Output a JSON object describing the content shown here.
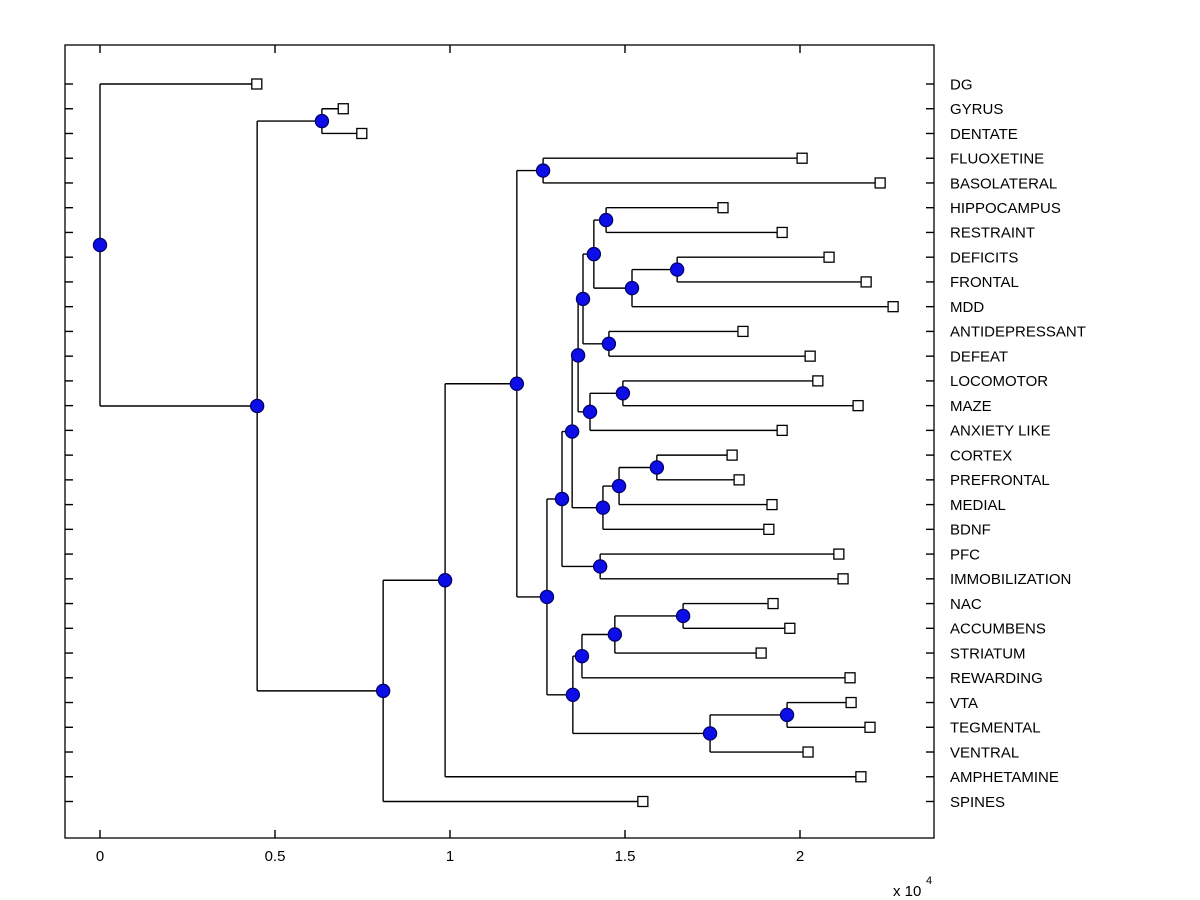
{
  "figure": {
    "background": "#ffffff",
    "frame_color": "#000000",
    "branch_line_color": "#000000",
    "node_marker_fill": "#0d0de8",
    "node_marker_edge": "#000066",
    "leaf_marker_fill": "#ffffff",
    "leaf_marker_edge": "#000000",
    "label_color": "#000000"
  },
  "chart_data": {
    "type": "dendrogram",
    "title": "",
    "xlabel": "",
    "ylabel": "",
    "orientation": "left-to-right",
    "grid": false,
    "legend": null,
    "x_axis": {
      "tick_values": [
        0,
        0.5,
        1,
        1.5,
        2
      ],
      "tick_labels": [
        "0",
        "0.5",
        "1",
        "1.5",
        "2"
      ],
      "multiplier_prefix": "x 10",
      "multiplier_exponent": "4",
      "xlim": [
        -0.1,
        2.383
      ]
    },
    "leaves": [
      {
        "label": "DG",
        "x": 0.448
      },
      {
        "label": "GYRUS",
        "x": 0.695
      },
      {
        "label": "DENTATE",
        "x": 0.748
      },
      {
        "label": "FLUOXETINE",
        "x": 2.006
      },
      {
        "label": "BASOLATERAL",
        "x": 2.229
      },
      {
        "label": "HIPPOCAMPUS",
        "x": 1.78
      },
      {
        "label": "RESTRAINT",
        "x": 1.949
      },
      {
        "label": "DEFICITS",
        "x": 2.083
      },
      {
        "label": "FRONTAL",
        "x": 2.189
      },
      {
        "label": "MDD",
        "x": 2.266
      },
      {
        "label": "ANTIDEPRESSANT",
        "x": 1.837
      },
      {
        "label": "DEFEAT",
        "x": 2.029
      },
      {
        "label": "LOCOMOTOR",
        "x": 2.051
      },
      {
        "label": "MAZE",
        "x": 2.166
      },
      {
        "label": "ANXIETY LIKE",
        "x": 1.949
      },
      {
        "label": "CORTEX",
        "x": 1.806
      },
      {
        "label": "PREFRONTAL",
        "x": 1.826
      },
      {
        "label": "MEDIAL",
        "x": 1.92
      },
      {
        "label": "BDNF",
        "x": 1.911
      },
      {
        "label": "PFC",
        "x": 2.111
      },
      {
        "label": "IMMOBILIZATION",
        "x": 2.123
      },
      {
        "label": "NAC",
        "x": 1.923
      },
      {
        "label": "ACCUMBENS",
        "x": 1.971
      },
      {
        "label": "STRIATUM",
        "x": 1.889
      },
      {
        "label": "REWARDING",
        "x": 2.143
      },
      {
        "label": "VTA",
        "x": 2.146
      },
      {
        "label": "TEGMENTAL",
        "x": 2.2
      },
      {
        "label": "VENTRAL",
        "x": 2.023
      },
      {
        "label": "AMPHETAMINE",
        "x": 2.174
      },
      {
        "label": "SPINES",
        "x": 1.551
      }
    ],
    "nodes": [
      {
        "id": "n-root",
        "x": 0.0,
        "children": [
          "DG",
          "n-2"
        ]
      },
      {
        "id": "n-2",
        "x": 0.449,
        "children": [
          "n-3",
          "n-s"
        ]
      },
      {
        "id": "n-3",
        "x": 0.634,
        "children": [
          "GYRUS",
          "DENTATE"
        ]
      },
      {
        "id": "n-s",
        "x": 0.809,
        "children": [
          "n-q",
          "SPINES"
        ]
      },
      {
        "id": "n-q",
        "x": 0.986,
        "children": [
          "n-p",
          "AMPHETAMINE"
        ]
      },
      {
        "id": "n-p",
        "x": 1.191,
        "children": [
          "n-j",
          "n-t"
        ]
      },
      {
        "id": "n-j",
        "x": 1.266,
        "children": [
          "FLUOXETINE",
          "BASOLATERAL"
        ]
      },
      {
        "id": "n-t",
        "x": 1.277,
        "children": [
          "n-x",
          "n-ad"
        ]
      },
      {
        "id": "n-x",
        "x": 1.32,
        "children": [
          "n-i",
          "n-y"
        ]
      },
      {
        "id": "n-i",
        "x": 1.349,
        "children": [
          "n-f",
          "n-w"
        ]
      },
      {
        "id": "n-f",
        "x": 1.366,
        "children": [
          "n-o",
          "n-g"
        ]
      },
      {
        "id": "n-o",
        "x": 1.38,
        "children": [
          "n-l",
          "n-e"
        ]
      },
      {
        "id": "n-l",
        "x": 1.411,
        "children": [
          "n-k",
          "n-n"
        ]
      },
      {
        "id": "n-k",
        "x": 1.446,
        "children": [
          "HIPPOCAMPUS",
          "RESTRAINT"
        ]
      },
      {
        "id": "n-n",
        "x": 1.52,
        "children": [
          "n-m",
          "MDD"
        ]
      },
      {
        "id": "n-m",
        "x": 1.649,
        "children": [
          "DEFICITS",
          "FRONTAL"
        ]
      },
      {
        "id": "n-e",
        "x": 1.454,
        "children": [
          "ANTIDEPRESSANT",
          "DEFEAT"
        ]
      },
      {
        "id": "n-g",
        "x": 1.4,
        "children": [
          "n-h",
          "ANXIETY LIKE"
        ]
      },
      {
        "id": "n-h",
        "x": 1.494,
        "children": [
          "LOCOMOTOR",
          "MAZE"
        ]
      },
      {
        "id": "n-w",
        "x": 1.437,
        "children": [
          "n-v",
          "BDNF"
        ]
      },
      {
        "id": "n-v",
        "x": 1.483,
        "children": [
          "n-u",
          "MEDIAL"
        ]
      },
      {
        "id": "n-u",
        "x": 1.591,
        "children": [
          "CORTEX",
          "PREFRONTAL"
        ]
      },
      {
        "id": "n-y",
        "x": 1.429,
        "children": [
          "PFC",
          "IMMOBILIZATION"
        ]
      },
      {
        "id": "n-ad",
        "x": 1.351,
        "children": [
          "n-ac",
          "n-ae"
        ]
      },
      {
        "id": "n-ac",
        "x": 1.377,
        "children": [
          "n-ab",
          "REWARDING"
        ]
      },
      {
        "id": "n-ab",
        "x": 1.471,
        "children": [
          "n-aa",
          "STRIATUM"
        ]
      },
      {
        "id": "n-aa",
        "x": 1.666,
        "children": [
          "NAC",
          "ACCUMBENS"
        ]
      },
      {
        "id": "n-ae",
        "x": 1.743,
        "children": [
          "n-af",
          "VENTRAL"
        ]
      },
      {
        "id": "n-af",
        "x": 1.963,
        "children": [
          "VTA",
          "TEGMENTAL"
        ]
      }
    ]
  }
}
